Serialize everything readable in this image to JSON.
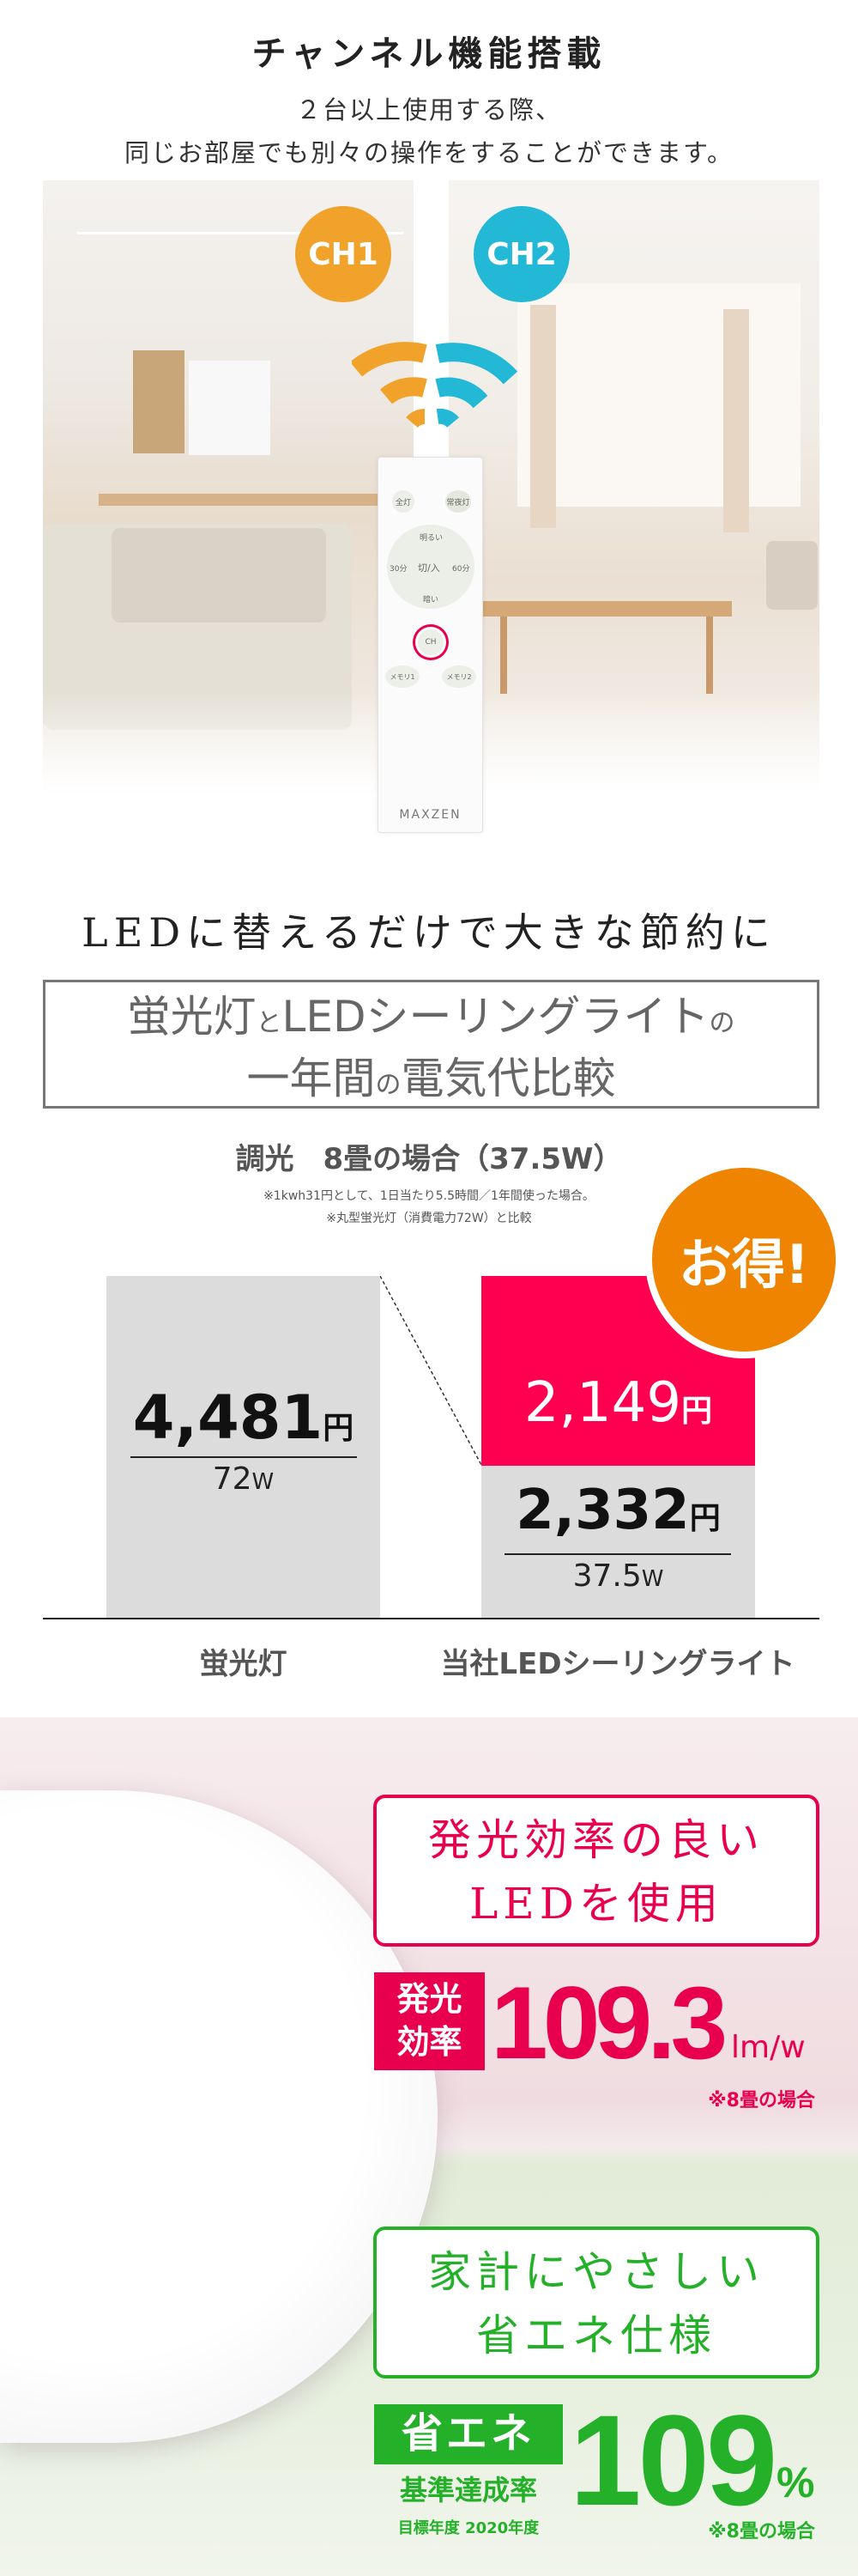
{
  "channel_section": {
    "title": "チャンネル機能搭載",
    "subtitle_line1": "２台以上使用する際、",
    "subtitle_line2": "同じお部屋でも別々の操作をすることができます。",
    "ch1_label": "CH1",
    "ch2_label": "CH2",
    "ch1_color": "#f0a22a",
    "ch2_color": "#23b8d6",
    "remote": {
      "brand": "MAXZEN",
      "buttons": [
        "全灯",
        "常夜灯",
        "明るい",
        "30分",
        "切/入",
        "60分",
        "暗い",
        "CH",
        "メモリ1",
        "メモリ2"
      ]
    }
  },
  "savings_section": {
    "title": "LEDに替えるだけで大きな節約に",
    "box_line1_a": "蛍光灯",
    "box_line1_b": "と",
    "box_line1_c": "LEDシーリングライト",
    "box_line1_d": "の",
    "box_line2_a": "一年間",
    "box_line2_b": "の",
    "box_line2_c": "電気代比較",
    "condition": "調光　8畳の場合（37.5W）",
    "note1": "※1kwh31円として、1日当たり5.5時間／1年間使った場合。",
    "note2": "※丸型蛍光灯（消費電力72W）と比較",
    "badge": "お得!",
    "badge_color": "#ee8400",
    "saving_color": "#ff0050",
    "fluorescent": {
      "cost": "4,481",
      "unit": "円",
      "watt": "72",
      "watt_unit": "W",
      "label": "蛍光灯"
    },
    "led": {
      "cost": "2,332",
      "unit": "円",
      "watt": "37.5",
      "watt_unit": "W",
      "label": "当社LEDシーリングライト",
      "saving": "2,149",
      "saving_unit": "円"
    }
  },
  "efficiency_section": {
    "heading_line1": "発光効率の良い",
    "heading_line2": "LEDを使用",
    "badge_line1": "発光",
    "badge_line2": "効率",
    "value": "109.3",
    "unit": "lm/w",
    "note": "※8畳の場合",
    "color": "#e8004f"
  },
  "eco_section": {
    "heading_line1": "家計にやさしい",
    "heading_line2": "省エネ仕様",
    "badge_main": "省エネ",
    "badge_sub": "基準達成率",
    "target_year": "目標年度 2020年度",
    "value": "109",
    "unit": "%",
    "note": "※8畳の場合",
    "color": "#25b02a"
  }
}
